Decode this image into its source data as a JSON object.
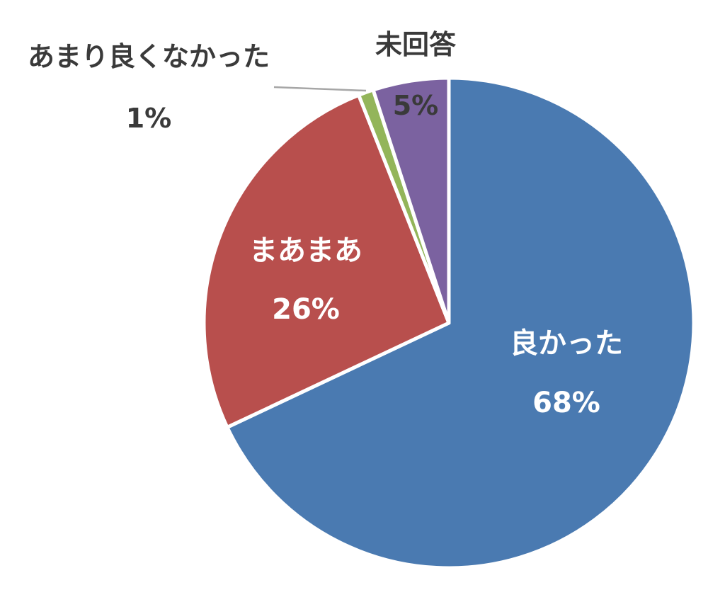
{
  "chart_data": {
    "type": "pie",
    "title": "",
    "slices": [
      {
        "label": "良かった",
        "value": 68,
        "value_label": "68%",
        "color": "#4A7AB1"
      },
      {
        "label": "まあまあ",
        "value": 26,
        "value_label": "26%",
        "color": "#B84F4D"
      },
      {
        "label": "あまり良くなかった",
        "value": 1,
        "value_label": "1%",
        "color": "#93B55A"
      },
      {
        "label": "未回答",
        "value": 5,
        "value_label": "5%",
        "color": "#7B62A0"
      }
    ],
    "label_colors": {
      "inside": "#ffffff",
      "outside": "#3a3a3a"
    },
    "leader_line_color": "#a6a6a6",
    "start_angle": "12 o'clock",
    "direction": "clockwise",
    "legend": "none"
  }
}
